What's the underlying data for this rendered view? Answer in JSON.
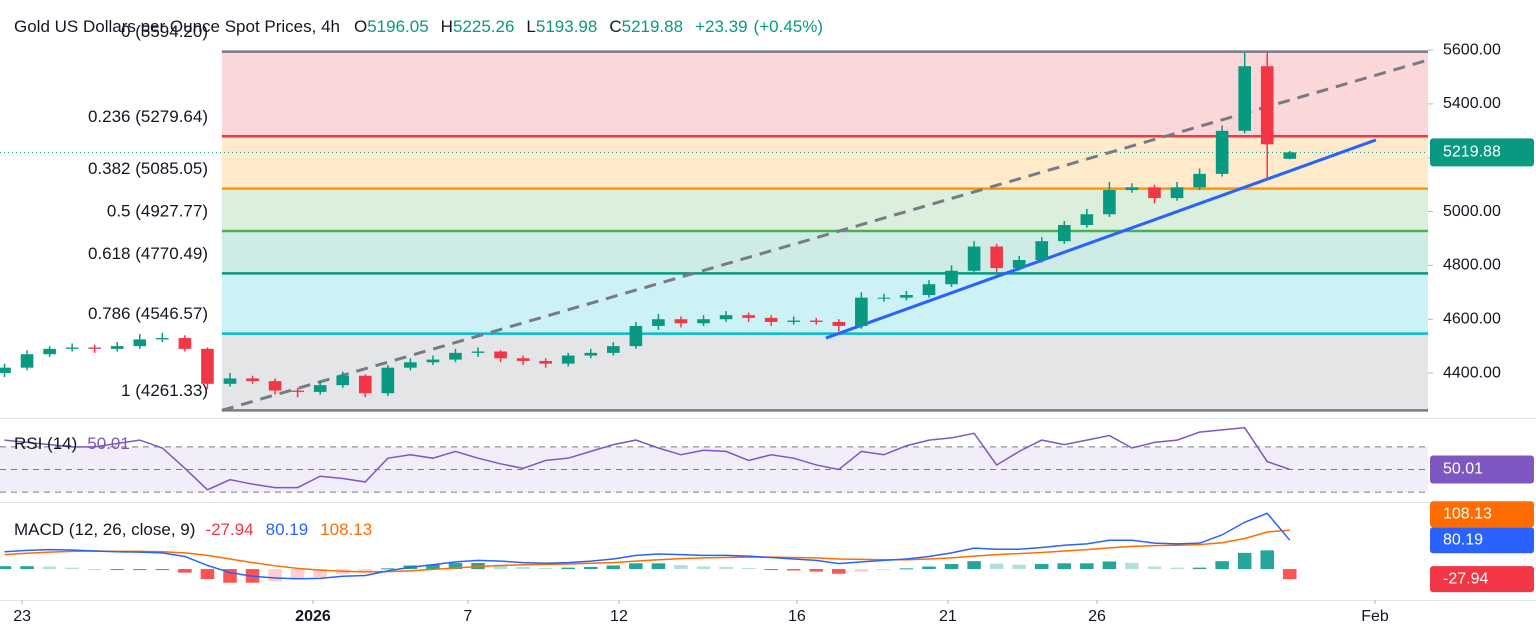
{
  "chart_data": {
    "type": "candlestick",
    "title": "Gold US Dollars per Ounce Spot Prices, 4h",
    "ohlc_prefixes": [
      "O",
      "H",
      "L",
      "C"
    ],
    "change": {
      "value": 23.39,
      "label": "+23.39"
    },
    "change_pct": {
      "value": 0.45,
      "label": "(+0.45%)"
    },
    "xlim": [
      -0.2,
      63.13
    ],
    "xticks": [
      {
        "value": 0.78,
        "label": "23"
      },
      {
        "value": 13.68,
        "label": "2026",
        "bold": true
      },
      {
        "value": 20.55,
        "label": "7"
      },
      {
        "value": 27.25,
        "label": "12"
      },
      {
        "value": 35.14,
        "label": "16"
      },
      {
        "value": 41.84,
        "label": "21"
      },
      {
        "value": 48.45,
        "label": "26"
      },
      {
        "value": 60.78,
        "label": "Feb"
      }
    ],
    "ylim": [
      4233,
      5786
    ],
    "yticks": [
      {
        "value": 4400,
        "label": "4400.00"
      },
      {
        "value": 4600,
        "label": "4600.00"
      },
      {
        "value": 4800,
        "label": "4800.00"
      },
      {
        "value": 5000,
        "label": "5000.00"
      },
      {
        "value": 5200,
        "label": "5200.00"
      },
      {
        "value": 5400,
        "label": "5400.00"
      },
      {
        "value": 5600,
        "label": "5600.00"
      }
    ],
    "up_color": "#089981",
    "down_color": "#f23645",
    "open": [
      4400,
      4420,
      4470,
      4490,
      4495,
      4490,
      4500,
      4525,
      4530,
      4490,
      4360,
      4380,
      4370,
      4335,
      4330,
      4355,
      4390,
      4325,
      4420,
      4440,
      4450,
      4475,
      4480,
      4455,
      4445,
      4435,
      4465,
      4475,
      4500,
      4575,
      4600,
      4585,
      4600,
      4615,
      4605,
      4590,
      4595,
      4590,
      4575,
      4680,
      4680,
      4690,
      4730,
      4780,
      4870,
      4790,
      4820,
      4890,
      4950,
      4990,
      5080,
      5090,
      5050,
      5090,
      5140,
      5300,
      5540,
      5196.05
    ],
    "high": [
      4435,
      4485,
      4500,
      4510,
      4505,
      4515,
      4545,
      4550,
      4540,
      4495,
      4400,
      4390,
      4380,
      4345,
      4370,
      4405,
      4395,
      4430,
      4455,
      4465,
      4490,
      4495,
      4485,
      4465,
      4455,
      4475,
      4490,
      4515,
      4590,
      4620,
      4610,
      4615,
      4630,
      4625,
      4615,
      4610,
      4605,
      4600,
      4700,
      4695,
      4705,
      4745,
      4800,
      4890,
      4880,
      4835,
      4905,
      4965,
      5010,
      5110,
      5105,
      5100,
      5110,
      5160,
      5320,
      5590,
      5594.2,
      5225.26
    ],
    "low": [
      4385,
      4410,
      4460,
      4480,
      4475,
      4480,
      4490,
      4515,
      4480,
      4340,
      4350,
      4360,
      4320,
      4310,
      4320,
      4345,
      4310,
      4315,
      4410,
      4430,
      4440,
      4460,
      4440,
      4430,
      4420,
      4425,
      4455,
      4465,
      4490,
      4560,
      4570,
      4575,
      4590,
      4590,
      4575,
      4580,
      4580,
      4555,
      4565,
      4665,
      4670,
      4680,
      4720,
      4770,
      4775,
      4780,
      4810,
      4880,
      4940,
      4980,
      5070,
      5030,
      5040,
      5080,
      5130,
      5290,
      5117,
      5193.98
    ],
    "close": [
      4420,
      4470,
      4490,
      4495,
      4490,
      4500,
      4525,
      4530,
      4490,
      4360,
      4380,
      4370,
      4335,
      4330,
      4355,
      4390,
      4325,
      4420,
      4440,
      4450,
      4475,
      4480,
      4455,
      4445,
      4435,
      4465,
      4475,
      4500,
      4575,
      4600,
      4585,
      4600,
      4615,
      4605,
      4590,
      4595,
      4590,
      4575,
      4680,
      4680,
      4690,
      4730,
      4780,
      4870,
      4790,
      4820,
      4890,
      4950,
      4990,
      5080,
      5090,
      5050,
      5090,
      5140,
      5300,
      5540,
      5250,
      5219.88
    ],
    "fib_start": 9.64,
    "fib_levels": [
      {
        "value": 5594.2,
        "label": "0 (5594.20)",
        "color": "#787b86"
      },
      {
        "value": 5279.64,
        "label": "0.236 (5279.64)",
        "color": "#f23645"
      },
      {
        "value": 5085.05,
        "label": "0.382 (5085.05)",
        "color": "#ff9800"
      },
      {
        "value": 4927.77,
        "label": "0.5 (4927.77)",
        "color": "#4caf50"
      },
      {
        "value": 4770.49,
        "label": "0.618 (4770.49)",
        "color": "#089981"
      },
      {
        "value": 4546.57,
        "label": "0.786 (4546.57)",
        "color": "#00bcd4"
      },
      {
        "value": 4261.33,
        "label": "1 (4261.33)",
        "color": "#787b86"
      }
    ],
    "trendlines": [
      {
        "x": [
          9.64,
          63.13
        ],
        "y": [
          4261.33,
          5563
        ],
        "color": "#787b86",
        "dashed": true
      },
      {
        "x": [
          36.43,
          60.82
        ],
        "y": [
          4530,
          5266
        ],
        "color": "#2962ff",
        "dashed": false
      }
    ],
    "rsi": {
      "title": "RSI (14)",
      "color": "#7e57c2",
      "ylim": [
        23,
        92
      ],
      "levels": [
        70,
        50,
        30
      ],
      "values": [
        76,
        74,
        72,
        70,
        70,
        73,
        76,
        69,
        51,
        32,
        41,
        37,
        34,
        34,
        44,
        42,
        39,
        60,
        63,
        60,
        66,
        60,
        55,
        51,
        58,
        60,
        66,
        72,
        76,
        69,
        63,
        67,
        66,
        58,
        63,
        60,
        54,
        50,
        66,
        63,
        71,
        76,
        78,
        82,
        54,
        66,
        76,
        72,
        76,
        80,
        69,
        74,
        76,
        83,
        85,
        87,
        57,
        50.01
      ]
    },
    "macd": {
      "title": "MACD (12, 26, close, 9)",
      "ylim": [
        -86,
        178
      ],
      "macd": {
        "color": "#2962ff",
        "values": [
          48,
          52,
          54,
          53,
          50,
          48,
          47,
          45,
          35,
          10,
          -10,
          -20,
          -25,
          -27,
          -26,
          -20,
          -18,
          -5,
          5,
          12,
          20,
          24,
          22,
          18,
          16,
          18,
          22,
          28,
          38,
          42,
          40,
          38,
          38,
          36,
          32,
          28,
          24,
          15,
          20,
          24,
          28,
          35,
          45,
          58,
          55,
          55,
          60,
          66,
          70,
          80,
          80,
          72,
          70,
          72,
          95,
          130,
          155,
          80.19
        ]
      },
      "signal": {
        "color": "#ff6d00",
        "values": [
          40,
          44,
          47,
          49,
          50,
          49,
          49,
          48,
          45,
          38,
          28,
          18,
          9,
          2,
          -3,
          -6,
          -8,
          -7,
          -5,
          -1,
          3,
          7,
          10,
          12,
          13,
          14,
          16,
          18,
          22,
          26,
          29,
          31,
          32,
          33,
          33,
          32,
          31,
          28,
          27,
          26,
          26,
          28,
          31,
          36,
          40,
          43,
          46,
          50,
          54,
          59,
          63,
          65,
          66,
          68,
          73,
          85,
          103,
          108.13
        ]
      },
      "histogram": {
        "colors": [
          "#26a69a",
          "#b2dfdb",
          "#ff5252",
          "#ffcdd2"
        ],
        "label_color": "#f23645",
        "values": [
          8,
          8,
          7,
          4,
          0,
          -1,
          -2,
          -3,
          -10,
          -28,
          -38,
          -38,
          -34,
          -29,
          -23,
          -14,
          -10,
          2,
          10,
          13,
          17,
          17,
          12,
          6,
          3,
          4,
          6,
          10,
          16,
          16,
          11,
          7,
          6,
          3,
          -1,
          -4,
          -7,
          -13,
          -7,
          -2,
          2,
          7,
          14,
          22,
          15,
          12,
          14,
          16,
          16,
          21,
          17,
          7,
          4,
          4,
          22,
          45,
          52,
          -27.94
        ]
      }
    }
  }
}
